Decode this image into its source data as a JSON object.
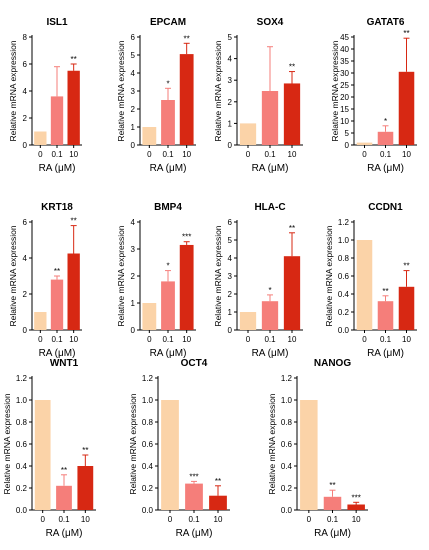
{
  "colors": {
    "c0": "#fbd3a8",
    "c1": "#f57e7a",
    "c2": "#d72813",
    "axis": "#000000"
  },
  "common": {
    "ylabel": "Relative mRNA expression",
    "xlabel": "RA (μM)",
    "categories": [
      "0",
      "0.1",
      "10"
    ]
  },
  "chart_data": [
    {
      "type": "bar",
      "title": "ISL1",
      "categories": [
        "0",
        "0.1",
        "10"
      ],
      "values": [
        1,
        3.6,
        5.5
      ],
      "error": [
        0,
        2.2,
        0.5
      ],
      "significance": [
        "",
        "",
        "**"
      ],
      "ylim": [
        0,
        8
      ],
      "yticks": [
        0,
        2,
        4,
        6,
        8
      ],
      "ytick_labels": [
        "0",
        "2",
        "4",
        "6",
        "8"
      ],
      "xlabel": "RA (μM)",
      "ylabel": "Relative mRNA expression"
    },
    {
      "type": "bar",
      "title": "EPCAM",
      "categories": [
        "0",
        "0.1",
        "10"
      ],
      "values": [
        1,
        2.5,
        5.05
      ],
      "error": [
        0,
        0.65,
        0.6
      ],
      "significance": [
        "",
        "*",
        "**"
      ],
      "ylim": [
        0,
        6
      ],
      "yticks": [
        0,
        1,
        2,
        3,
        4,
        5,
        6
      ],
      "ytick_labels": [
        "0",
        "1",
        "2",
        "3",
        "4",
        "5",
        "6"
      ],
      "xlabel": "RA (μM)",
      "ylabel": "Relative mRNA expression"
    },
    {
      "type": "bar",
      "title": "SOX4",
      "categories": [
        "0",
        "0.1",
        "10"
      ],
      "values": [
        1,
        2.5,
        2.85
      ],
      "error": [
        0,
        2.05,
        0.55
      ],
      "significance": [
        "",
        "",
        "**"
      ],
      "ylim": [
        0,
        5
      ],
      "yticks": [
        0,
        1,
        2,
        3,
        4,
        5
      ],
      "ytick_labels": [
        "0",
        "1",
        "2",
        "3",
        "4",
        "5"
      ],
      "xlabel": "RA (μM)",
      "ylabel": "Relative mRNA expression"
    },
    {
      "type": "bar",
      "title": "GATAT6",
      "categories": [
        "0",
        "0.1",
        "10"
      ],
      "values": [
        1,
        5.5,
        30.5
      ],
      "error": [
        0,
        2.5,
        14
      ],
      "significance": [
        "",
        "*",
        "**"
      ],
      "ylim": [
        0,
        45
      ],
      "yticks": [
        0,
        5,
        10,
        15,
        20,
        25,
        30,
        35,
        40,
        45
      ],
      "ytick_labels": [
        "0",
        "5",
        "10",
        "15",
        "20",
        "25",
        "30",
        "35",
        "40",
        "45"
      ],
      "xlabel": "RA (μM)",
      "ylabel": "Relative mRNA expression"
    },
    {
      "type": "bar",
      "title": "KRT18",
      "categories": [
        "0",
        "0.1",
        "10"
      ],
      "values": [
        1,
        2.8,
        4.25
      ],
      "error": [
        0,
        0.2,
        1.55
      ],
      "significance": [
        "",
        "**",
        "**"
      ],
      "ylim": [
        0,
        6
      ],
      "yticks": [
        0,
        2,
        4,
        6
      ],
      "ytick_labels": [
        "0",
        "2",
        "4",
        "6"
      ],
      "xlabel": "RA (μM)",
      "ylabel": "Relative mRNA expression"
    },
    {
      "type": "bar",
      "title": "BMP4",
      "categories": [
        "0",
        "0.1",
        "10"
      ],
      "values": [
        1,
        1.8,
        3.15
      ],
      "error": [
        0,
        0.4,
        0.12
      ],
      "significance": [
        "",
        "*",
        "***"
      ],
      "ylim": [
        0,
        4
      ],
      "yticks": [
        0,
        1,
        2,
        3,
        4
      ],
      "ytick_labels": [
        "0",
        "1",
        "2",
        "3",
        "4"
      ],
      "xlabel": "RA (μM)",
      "ylabel": "Relative mRNA expression"
    },
    {
      "type": "bar",
      "title": "HLA-C",
      "categories": [
        "0",
        "0.1",
        "10"
      ],
      "values": [
        1,
        1.6,
        4.1
      ],
      "error": [
        0,
        0.35,
        1.3
      ],
      "significance": [
        "",
        "*",
        "**"
      ],
      "ylim": [
        0,
        6
      ],
      "yticks": [
        0,
        1,
        2,
        3,
        4,
        5,
        6
      ],
      "ytick_labels": [
        "0",
        "1",
        "2",
        "3",
        "4",
        "5",
        "6"
      ],
      "xlabel": "RA (μM)",
      "ylabel": "Relative mRNA expression"
    },
    {
      "type": "bar",
      "title": "CCDN1",
      "categories": [
        "0",
        "0.1",
        "10"
      ],
      "values": [
        1,
        0.32,
        0.48
      ],
      "error": [
        0,
        0.06,
        0.18
      ],
      "significance": [
        "",
        "**",
        "**"
      ],
      "ylim": [
        0,
        1.2
      ],
      "yticks": [
        0,
        0.2,
        0.4,
        0.6,
        0.8,
        1.0,
        1.2
      ],
      "ytick_labels": [
        "0.0",
        "0.2",
        "0.4",
        "0.6",
        "0.8",
        "1.0",
        "1.2"
      ],
      "xlabel": "RA (μM)",
      "ylabel": "Relative mRNA expression"
    },
    {
      "type": "bar",
      "title": "WNT1",
      "categories": [
        "0",
        "0.1",
        "10"
      ],
      "values": [
        1,
        0.22,
        0.4
      ],
      "error": [
        0,
        0.1,
        0.1
      ],
      "significance": [
        "",
        "**",
        "**"
      ],
      "ylim": [
        0,
        1.2
      ],
      "yticks": [
        0,
        0.2,
        0.4,
        0.6,
        0.8,
        1.0,
        1.2
      ],
      "ytick_labels": [
        "0.0",
        "0.2",
        "0.4",
        "0.6",
        "0.8",
        "1.0",
        "1.2"
      ],
      "xlabel": "RA (μM)",
      "ylabel": "Relative mRNA expression"
    },
    {
      "type": "bar",
      "title": "OCT4",
      "categories": [
        "0",
        "0.1",
        "10"
      ],
      "values": [
        1,
        0.24,
        0.13
      ],
      "error": [
        0,
        0.02,
        0.09
      ],
      "significance": [
        "",
        "***",
        "**"
      ],
      "ylim": [
        0,
        1.2
      ],
      "yticks": [
        0,
        0.2,
        0.4,
        0.6,
        0.8,
        1.0,
        1.2
      ],
      "ytick_labels": [
        "0.0",
        "0.2",
        "0.4",
        "0.6",
        "0.8",
        "1.0",
        "1.2"
      ],
      "xlabel": "RA (μM)",
      "ylabel": "Relative mRNA expression"
    },
    {
      "type": "bar",
      "title": "NANOG",
      "categories": [
        "0",
        "0.1",
        "10"
      ],
      "values": [
        1,
        0.12,
        0.05
      ],
      "error": [
        0,
        0.06,
        0.02
      ],
      "significance": [
        "",
        "**",
        "***"
      ],
      "ylim": [
        0,
        1.2
      ],
      "yticks": [
        0,
        0.2,
        0.4,
        0.6,
        0.8,
        1.0,
        1.2
      ],
      "ytick_labels": [
        "0.0",
        "0.2",
        "0.4",
        "0.6",
        "0.8",
        "1.0",
        "1.2"
      ],
      "xlabel": "RA (μM)",
      "ylabel": "Relative mRNA expression"
    }
  ]
}
